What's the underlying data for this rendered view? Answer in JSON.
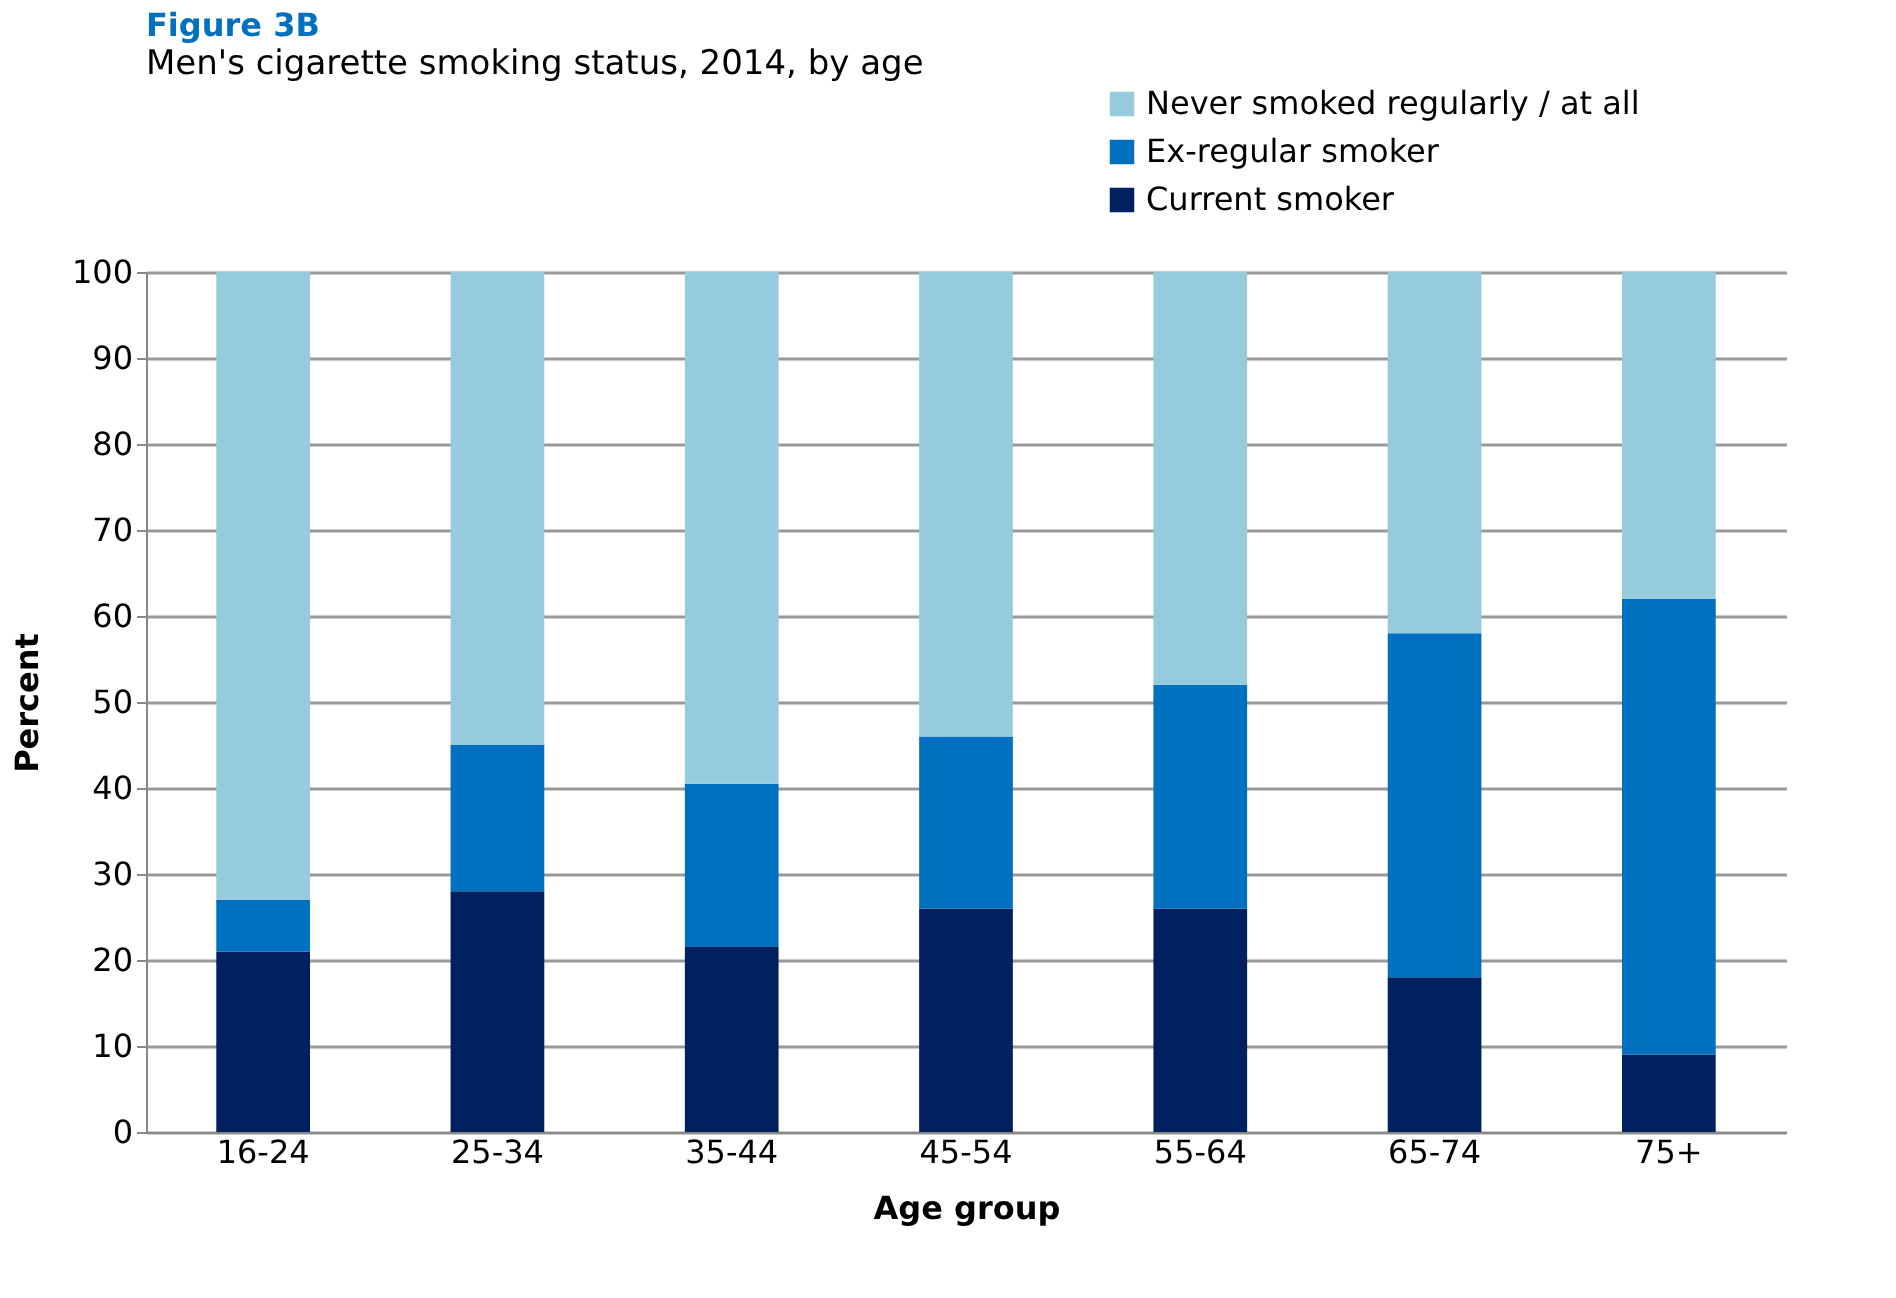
{
  "chart_data": {
    "type": "bar",
    "title": "Figure 3B",
    "subtitle": "Men's cigarette smoking status, 2014, by age",
    "xlabel": "Age group",
    "ylabel": "Percent",
    "categories": [
      "16-24",
      "25-34",
      "35-44",
      "45-54",
      "55-64",
      "65-74",
      "75+"
    ],
    "stacked": true,
    "series": [
      {
        "name": "Current smoker",
        "color": "#002060",
        "values": [
          21,
          28,
          21.5,
          26,
          26,
          18,
          9
        ]
      },
      {
        "name": "Ex-regular smoker",
        "color": "#0070c0",
        "values": [
          6,
          17,
          19,
          20,
          26,
          40,
          53
        ]
      },
      {
        "name": "Never smoked regularly / at all",
        "color": "#95cbdd",
        "values": [
          73,
          55,
          59.5,
          54,
          48,
          42,
          38
        ]
      }
    ],
    "ylim": [
      0,
      100
    ],
    "yticks": [
      0,
      10,
      20,
      30,
      40,
      50,
      60,
      70,
      80,
      90,
      100
    ],
    "grid": "y",
    "legend": "top right"
  }
}
